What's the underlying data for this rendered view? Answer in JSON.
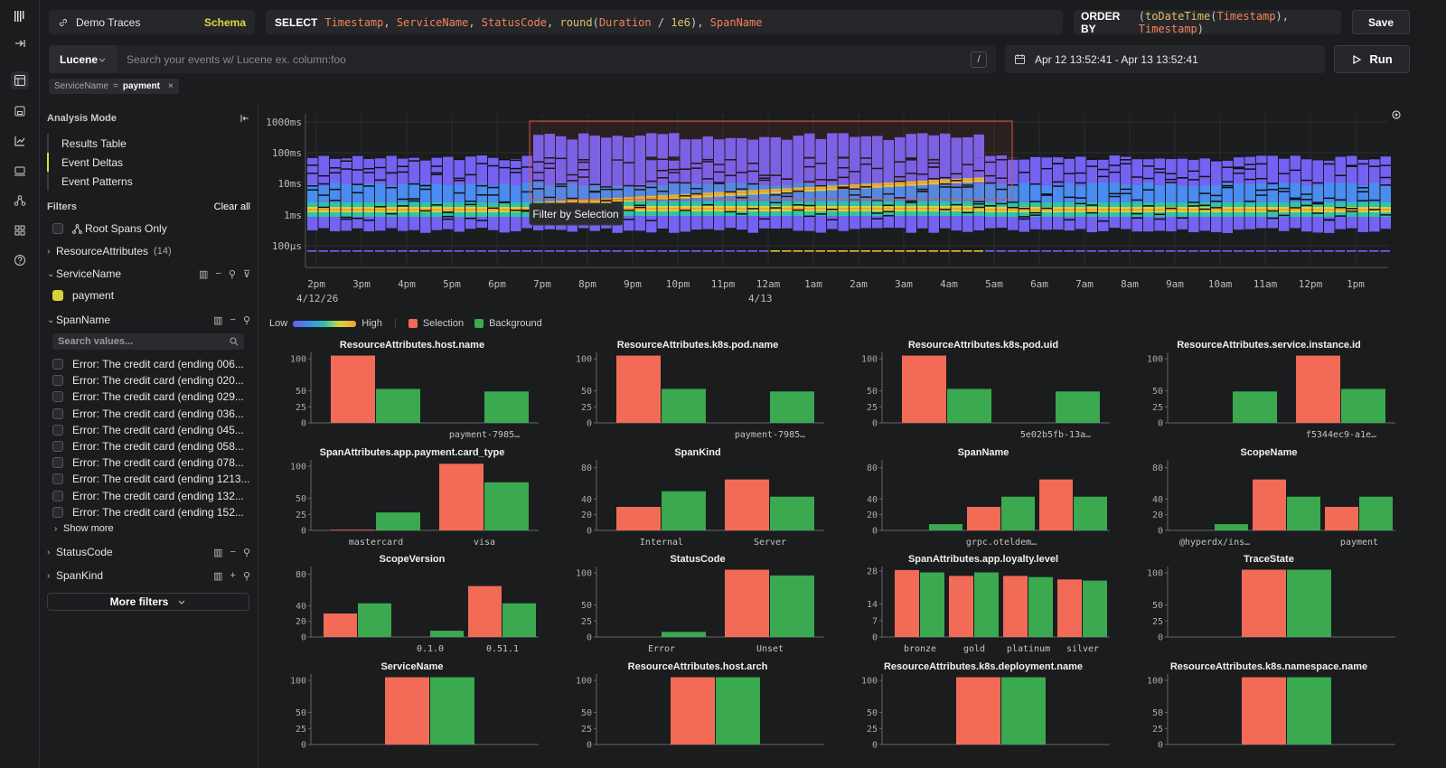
{
  "app": {
    "logo": "hyperdx-logo"
  },
  "rail": {
    "icons": [
      "table-icon",
      "save-icon",
      "chart-icon",
      "monitor-icon",
      "services-icon",
      "dashboards-icon",
      "help-icon"
    ]
  },
  "source": {
    "name": "Demo Traces",
    "schema_label": "Schema"
  },
  "select": {
    "keyword": "SELECT"
  },
  "orderby": {
    "keyword": "ORDER BY"
  },
  "save_label": "Save",
  "search": {
    "language": "Lucene",
    "placeholder": "Search your events w/ Lucene ex. column:foo",
    "shortcut": "/"
  },
  "daterange": {
    "value": "Apr 12 13:52:41 - Apr 13 13:52:41"
  },
  "run_label": "Run",
  "filter_chip": {
    "key": "ServiceName",
    "op": "=",
    "value": "payment"
  },
  "sidebar": {
    "analysis_title": "Analysis Mode",
    "modes": [
      "Results Table",
      "Event Deltas",
      "Event Patterns"
    ],
    "active_mode": 1,
    "filters_title": "Filters",
    "clear_all": "Clear all",
    "root_spans": "Root Spans Only",
    "resource_attrs": {
      "label": "ResourceAttributes",
      "count": "(14)"
    },
    "service_name": {
      "label": "ServiceName",
      "value": "payment"
    },
    "span_name": {
      "label": "SpanName",
      "search_placeholder": "Search values...",
      "values": [
        "Error: The credit card (ending 006...",
        "Error: The credit card (ending 020...",
        "Error: The credit card (ending 029...",
        "Error: The credit card (ending 036...",
        "Error: The credit card (ending 045...",
        "Error: The credit card (ending 058...",
        "Error: The credit card (ending 078...",
        "Error: The credit card (ending 1213...",
        "Error: The credit card (ending 132...",
        "Error: The credit card (ending 152..."
      ],
      "show_more": "Show more"
    },
    "status_code": "StatusCode",
    "span_kind": "SpanKind",
    "more_filters": "More filters"
  },
  "heatmap": {
    "y_ticks": [
      "1000ms",
      "100ms",
      "10ms",
      "1ms",
      "100µs"
    ],
    "x_ticks": [
      "2pm",
      "3pm",
      "4pm",
      "5pm",
      "6pm",
      "7pm",
      "8pm",
      "9pm",
      "10pm",
      "11pm",
      "12am",
      "1am",
      "2am",
      "3am",
      "4am",
      "5am",
      "6am",
      "7am",
      "8am",
      "9am",
      "10am",
      "11am",
      "12pm",
      "1pm"
    ],
    "x_dates": [
      {
        "at": "2pm",
        "label": "4/12/26"
      },
      {
        "at": "12am",
        "label": "4/13"
      }
    ],
    "tooltip": "Filter by Selection",
    "colors": {
      "selection_box": "#e0533a"
    }
  },
  "legend": {
    "low": "Low",
    "high": "High",
    "selection": "Selection",
    "background": "Background"
  },
  "colors": {
    "selection": "#f26b56",
    "background": "#3aa94f",
    "accent": "#e0da3e"
  },
  "chart_data": [
    {
      "type": "bar",
      "title": "ResourceAttributes.host.name",
      "ylim": [
        0,
        110
      ],
      "yticks": [
        0,
        25,
        50,
        100
      ],
      "categories": [
        "",
        "payment-7985…"
      ],
      "series": [
        {
          "name": "Selection",
          "values": [
            105,
            null
          ]
        },
        {
          "name": "Background",
          "values": [
            53,
            49
          ]
        }
      ]
    },
    {
      "type": "bar",
      "title": "ResourceAttributes.k8s.pod.name",
      "ylim": [
        0,
        110
      ],
      "yticks": [
        0,
        25,
        50,
        100
      ],
      "categories": [
        "",
        "payment-7985…"
      ],
      "series": [
        {
          "name": "Selection",
          "values": [
            105,
            null
          ]
        },
        {
          "name": "Background",
          "values": [
            53,
            49
          ]
        }
      ]
    },
    {
      "type": "bar",
      "title": "ResourceAttributes.k8s.pod.uid",
      "ylim": [
        0,
        110
      ],
      "yticks": [
        0,
        25,
        50,
        100
      ],
      "categories": [
        "",
        "5e02b5fb-13a…"
      ],
      "series": [
        {
          "name": "Selection",
          "values": [
            105,
            null
          ]
        },
        {
          "name": "Background",
          "values": [
            53,
            49
          ]
        }
      ]
    },
    {
      "type": "bar",
      "title": "ResourceAttributes.service.instance.id",
      "ylim": [
        0,
        110
      ],
      "yticks": [
        0,
        25,
        50,
        100
      ],
      "categories": [
        "",
        "f5344ec9-a1e…"
      ],
      "series": [
        {
          "name": "Selection",
          "values": [
            null,
            105
          ]
        },
        {
          "name": "Background",
          "values": [
            49,
            53
          ]
        }
      ]
    },
    {
      "type": "bar",
      "title": "SpanAttributes.app.payment.card_type",
      "ylim": [
        0,
        110
      ],
      "yticks": [
        0,
        25,
        50,
        100
      ],
      "categories": [
        "mastercard",
        "visa"
      ],
      "series": [
        {
          "name": "Selection",
          "values": [
            1,
            104
          ]
        },
        {
          "name": "Background",
          "values": [
            28,
            75
          ]
        }
      ]
    },
    {
      "type": "bar",
      "title": "SpanKind",
      "ylim": [
        0,
        90
      ],
      "yticks": [
        0,
        20,
        40,
        80
      ],
      "categories": [
        "Internal",
        "Server"
      ],
      "series": [
        {
          "name": "Selection",
          "values": [
            30,
            65
          ]
        },
        {
          "name": "Background",
          "values": [
            50,
            43
          ]
        }
      ]
    },
    {
      "type": "bar",
      "title": "SpanName",
      "ylim": [
        0,
        90
      ],
      "yticks": [
        0,
        20,
        40,
        80
      ],
      "categories": [
        "",
        "grpc.oteldem…",
        ""
      ],
      "series": [
        {
          "name": "Selection",
          "values": [
            null,
            30,
            65
          ]
        },
        {
          "name": "Background",
          "values": [
            8,
            43,
            43
          ]
        }
      ]
    },
    {
      "type": "bar",
      "title": "ScopeName",
      "ylim": [
        0,
        90
      ],
      "yticks": [
        0,
        20,
        40,
        80
      ],
      "categories": [
        "@hyperdx/ins…",
        "",
        "payment"
      ],
      "series": [
        {
          "name": "Selection",
          "values": [
            null,
            65,
            30
          ]
        },
        {
          "name": "Background",
          "values": [
            8,
            43,
            43
          ]
        }
      ]
    },
    {
      "type": "bar",
      "title": "ScopeVersion",
      "ylim": [
        0,
        90
      ],
      "yticks": [
        0,
        20,
        40,
        80
      ],
      "categories": [
        "",
        "0.1.0",
        "0.51.1"
      ],
      "series": [
        {
          "name": "Selection",
          "values": [
            30,
            null,
            65
          ]
        },
        {
          "name": "Background",
          "values": [
            43,
            8,
            43
          ]
        }
      ]
    },
    {
      "type": "bar",
      "title": "StatusCode",
      "ylim": [
        0,
        110
      ],
      "yticks": [
        0,
        25,
        50,
        100
      ],
      "categories": [
        "Error",
        "Unset"
      ],
      "series": [
        {
          "name": "Selection",
          "values": [
            null,
            105
          ]
        },
        {
          "name": "Background",
          "values": [
            8,
            96
          ]
        }
      ]
    },
    {
      "type": "bar",
      "title": "SpanAttributes.app.loyalty.level",
      "ylim": [
        0,
        30
      ],
      "yticks": [
        0,
        7,
        14,
        28
      ],
      "categories": [
        "bronze",
        "gold",
        "platinum",
        "silver"
      ],
      "series": [
        {
          "name": "Selection",
          "values": [
            28.5,
            26,
            26,
            24.5
          ]
        },
        {
          "name": "Background",
          "values": [
            27.5,
            27.5,
            25.5,
            24
          ]
        }
      ]
    },
    {
      "type": "bar",
      "title": "TraceState",
      "ylim": [
        0,
        110
      ],
      "yticks": [
        0,
        25,
        50,
        100
      ],
      "categories": [
        ""
      ],
      "series": [
        {
          "name": "Selection",
          "values": [
            105
          ]
        },
        {
          "name": "Background",
          "values": [
            105
          ]
        }
      ]
    },
    {
      "type": "bar",
      "title": "ServiceName",
      "ylim": [
        0,
        110
      ],
      "yticks": [
        0,
        25,
        50,
        100
      ],
      "categories": [
        ""
      ],
      "series": [
        {
          "name": "Selection",
          "values": [
            105
          ]
        },
        {
          "name": "Background",
          "values": [
            105
          ]
        }
      ]
    },
    {
      "type": "bar",
      "title": "ResourceAttributes.host.arch",
      "ylim": [
        0,
        110
      ],
      "yticks": [
        0,
        25,
        50,
        100
      ],
      "categories": [
        ""
      ],
      "series": [
        {
          "name": "Selection",
          "values": [
            105
          ]
        },
        {
          "name": "Background",
          "values": [
            105
          ]
        }
      ]
    },
    {
      "type": "bar",
      "title": "ResourceAttributes.k8s.deployment.name",
      "ylim": [
        0,
        110
      ],
      "yticks": [
        0,
        25,
        50,
        100
      ],
      "categories": [
        ""
      ],
      "series": [
        {
          "name": "Selection",
          "values": [
            105
          ]
        },
        {
          "name": "Background",
          "values": [
            105
          ]
        }
      ]
    },
    {
      "type": "bar",
      "title": "ResourceAttributes.k8s.namespace.name",
      "ylim": [
        0,
        110
      ],
      "yticks": [
        0,
        25,
        50,
        100
      ],
      "categories": [
        ""
      ],
      "series": [
        {
          "name": "Selection",
          "values": [
            105
          ]
        },
        {
          "name": "Background",
          "values": [
            105
          ]
        }
      ]
    }
  ]
}
